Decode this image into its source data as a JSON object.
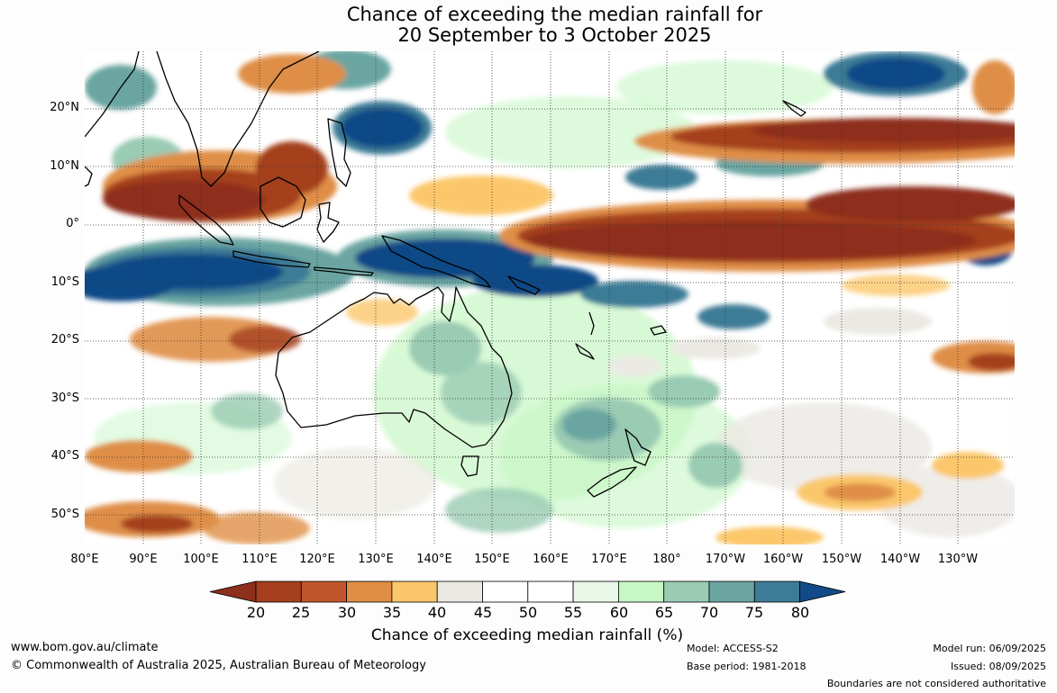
{
  "title_line1": "Chance of exceeding the median rainfall for",
  "title_line2": "20 September to 3 October 2025",
  "lat_labels": [
    "20°N",
    "10°N",
    "0°",
    "10°S",
    "20°S",
    "30°S",
    "40°S",
    "50°S"
  ],
  "lon_labels": [
    "80°E",
    "90°E",
    "100°E",
    "110°E",
    "120°E",
    "130°E",
    "140°E",
    "150°E",
    "160°E",
    "170°E",
    "180°",
    "170°W",
    "160°W",
    "150°W",
    "140°W",
    "130°W"
  ],
  "colorbar": {
    "ticks": [
      "20",
      "25",
      "30",
      "35",
      "40",
      "45",
      "50",
      "55",
      "60",
      "65",
      "70",
      "75",
      "80"
    ],
    "colors": [
      "#a53f1e",
      "#c0562a",
      "#df8e46",
      "#fbc76b",
      "#ebe9e3",
      "#ffffff",
      "#ffffff",
      "#eaf7e9",
      "#c7f7c5",
      "#9acbb3",
      "#6aa5a1",
      "#3e7b96"
    ],
    "under_color": "#8e2f1c",
    "over_color": "#114a87",
    "label": "Chance of exceeding median rainfall (%)"
  },
  "footer": {
    "website": "www.bom.gov.au/climate",
    "copyright": "© Commonwealth of Australia 2025, Australian Bureau of Meteorology",
    "model": "Model: ACCESS-S2",
    "base_period": "Base period: 1981-2018",
    "model_run": "Model run: 06/09/2025",
    "issued": "Issued: 08/09/2025",
    "disclaimer": "Boundaries are not considered authoritative"
  },
  "map_colors": {
    "dark_brown": "#8e2f1c",
    "brown": "#a53f1e",
    "orange": "#df8e46",
    "light_orange": "#fbc76b",
    "grey": "#ebe9e3",
    "light_green": "#c7f7c5",
    "green": "#9acbb3",
    "teal": "#6aa5a1",
    "blue": "#3e7b96",
    "dark_blue": "#114a87"
  }
}
